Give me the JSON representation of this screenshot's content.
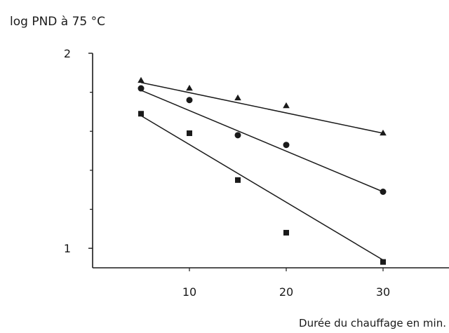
{
  "chart_data": {
    "type": "scatter",
    "ylabel": "log PND à  75 °C",
    "xlabel": "Durée du chauffage  en min.",
    "xlim": [
      0,
      37
    ],
    "ylim": [
      0.9,
      2.0
    ],
    "x_ticks": [
      10,
      20,
      30
    ],
    "y_ticks": [
      1,
      2
    ],
    "y_minor_ticks": [
      1.2,
      1.4,
      1.6,
      1.8
    ],
    "grid": false,
    "series": [
      {
        "marker": "triangle",
        "x": [
          5,
          10,
          15,
          20,
          30
        ],
        "y": [
          1.86,
          1.82,
          1.77,
          1.73,
          1.59
        ],
        "fit": [
          [
            5,
            1.85
          ],
          [
            30,
            1.59
          ]
        ]
      },
      {
        "marker": "circle",
        "x": [
          5,
          10,
          15,
          20,
          30
        ],
        "y": [
          1.82,
          1.76,
          1.58,
          1.53,
          1.29
        ],
        "fit": [
          [
            5,
            1.81
          ],
          [
            30,
            1.29
          ]
        ]
      },
      {
        "marker": "square",
        "x": [
          5,
          10,
          15,
          20,
          30
        ],
        "y": [
          1.69,
          1.59,
          1.35,
          1.08,
          0.93
        ],
        "fit": [
          [
            5,
            1.68
          ],
          [
            30,
            0.94
          ]
        ]
      }
    ]
  }
}
